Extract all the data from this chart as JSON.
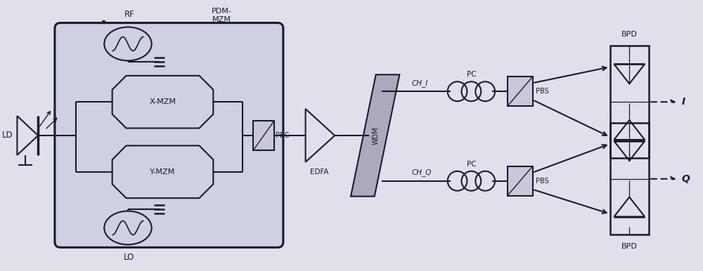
{
  "bg_color": "#dfe0ea",
  "line_color": "#1a1a2e",
  "pdm_fill": "#d0d0e4",
  "wdm_fill": "#aaaabc",
  "fig_w": 10.0,
  "fig_h": 3.86,
  "dot_label": ".",
  "rf_label": "RF",
  "lo_label": "LO",
  "ld_label": "LD",
  "pdm_label": "PDM-\nMZM",
  "xmzm_label": "X-MZM",
  "ymzm_label": "Y-MZM",
  "pbc_label": "PBC",
  "edfa_label": "EDFA",
  "wdm_label": "WDM",
  "chi_label": "CH_I",
  "chq_label": "CH_Q",
  "pc_label": "PC",
  "pbs_label": "PBS",
  "bpd_label": "BPD",
  "i_label": "I",
  "q_label": "Q"
}
